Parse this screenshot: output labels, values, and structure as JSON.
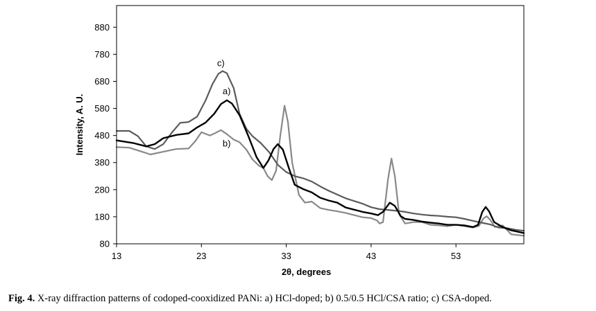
{
  "chart_data": {
    "type": "line",
    "xlabel": "2θ, degrees",
    "ylabel": "Intensity, A. U.",
    "xlim": [
      13,
      61
    ],
    "ylim": [
      80,
      960
    ],
    "xticks": [
      13,
      23,
      33,
      43,
      53
    ],
    "yticks": [
      80,
      180,
      280,
      380,
      480,
      580,
      680,
      780,
      880
    ],
    "grid": false,
    "series": [
      {
        "name": "a)",
        "color": "#000000",
        "label_at": [
          25.5,
          632
        ],
        "points": [
          [
            13,
            462
          ],
          [
            15,
            452
          ],
          [
            16.5,
            440
          ],
          [
            17.5,
            448
          ],
          [
            18.5,
            470
          ],
          [
            20,
            482
          ],
          [
            21.5,
            488
          ],
          [
            22.5,
            510
          ],
          [
            23.5,
            528
          ],
          [
            24.5,
            560
          ],
          [
            25.3,
            596
          ],
          [
            26,
            610
          ],
          [
            26.6,
            598
          ],
          [
            27.5,
            555
          ],
          [
            28.5,
            480
          ],
          [
            29.5,
            400
          ],
          [
            30.3,
            360
          ],
          [
            30.9,
            388
          ],
          [
            31.5,
            430
          ],
          [
            32,
            448
          ],
          [
            32.6,
            428
          ],
          [
            33.3,
            360
          ],
          [
            34,
            298
          ],
          [
            35,
            282
          ],
          [
            36,
            270
          ],
          [
            37,
            250
          ],
          [
            38,
            240
          ],
          [
            39,
            232
          ],
          [
            40,
            214
          ],
          [
            41,
            206
          ],
          [
            42,
            198
          ],
          [
            43,
            192
          ],
          [
            43.8,
            186
          ],
          [
            44.4,
            198
          ],
          [
            45.2,
            232
          ],
          [
            45.8,
            220
          ],
          [
            46.5,
            182
          ],
          [
            47,
            172
          ],
          [
            48,
            168
          ],
          [
            49,
            162
          ],
          [
            50,
            158
          ],
          [
            51,
            155
          ],
          [
            52,
            150
          ],
          [
            53,
            150
          ],
          [
            54,
            148
          ],
          [
            55,
            142
          ],
          [
            55.6,
            150
          ],
          [
            56.1,
            198
          ],
          [
            56.5,
            216
          ],
          [
            56.9,
            200
          ],
          [
            57.5,
            160
          ],
          [
            58.5,
            142
          ],
          [
            59.5,
            130
          ],
          [
            61,
            120
          ]
        ]
      },
      {
        "name": "b)",
        "color": "#888888",
        "label_at": [
          25.5,
          440
        ],
        "points": [
          [
            13,
            437
          ],
          [
            14.5,
            435
          ],
          [
            16,
            420
          ],
          [
            17,
            410
          ],
          [
            18.5,
            420
          ],
          [
            20,
            430
          ],
          [
            21.5,
            432
          ],
          [
            22.3,
            460
          ],
          [
            23,
            492
          ],
          [
            24,
            480
          ],
          [
            24.7,
            490
          ],
          [
            25.3,
            500
          ],
          [
            26,
            485
          ],
          [
            26.8,
            465
          ],
          [
            27.5,
            455
          ],
          [
            28.3,
            428
          ],
          [
            29,
            392
          ],
          [
            29.8,
            368
          ],
          [
            30.3,
            360
          ],
          [
            30.8,
            330
          ],
          [
            31.3,
            315
          ],
          [
            31.8,
            350
          ],
          [
            32.3,
            480
          ],
          [
            32.8,
            590
          ],
          [
            33.2,
            530
          ],
          [
            33.7,
            380
          ],
          [
            34.5,
            260
          ],
          [
            35.2,
            232
          ],
          [
            36,
            236
          ],
          [
            37,
            212
          ],
          [
            38,
            205
          ],
          [
            39,
            200
          ],
          [
            40,
            194
          ],
          [
            41,
            186
          ],
          [
            42,
            178
          ],
          [
            43,
            175
          ],
          [
            43.7,
            166
          ],
          [
            44,
            155
          ],
          [
            44.4,
            160
          ],
          [
            45,
            320
          ],
          [
            45.4,
            395
          ],
          [
            45.8,
            330
          ],
          [
            46.3,
            190
          ],
          [
            47,
            155
          ],
          [
            48,
            160
          ],
          [
            49,
            160
          ],
          [
            50,
            150
          ],
          [
            51,
            148
          ],
          [
            52,
            145
          ],
          [
            53,
            150
          ],
          [
            54,
            145
          ],
          [
            55,
            140
          ],
          [
            55.7,
            146
          ],
          [
            56.2,
            172
          ],
          [
            56.6,
            182
          ],
          [
            57,
            170
          ],
          [
            57.6,
            142
          ],
          [
            58.5,
            148
          ],
          [
            59.5,
            115
          ],
          [
            61,
            110
          ]
        ]
      },
      {
        "name": "c)",
        "color": "#5a5a5a",
        "label_at": [
          25.5,
          736
        ],
        "points": [
          [
            13,
            497
          ],
          [
            14.5,
            497
          ],
          [
            15.5,
            478
          ],
          [
            16.5,
            440
          ],
          [
            17.5,
            430
          ],
          [
            18.5,
            448
          ],
          [
            19.5,
            490
          ],
          [
            20.5,
            527
          ],
          [
            21.5,
            530
          ],
          [
            22.5,
            550
          ],
          [
            23.5,
            610
          ],
          [
            24.3,
            670
          ],
          [
            25,
            708
          ],
          [
            25.5,
            718
          ],
          [
            26,
            710
          ],
          [
            26.8,
            655
          ],
          [
            27.5,
            560
          ],
          [
            28.3,
            505
          ],
          [
            29,
            478
          ],
          [
            30,
            452
          ],
          [
            31,
            418
          ],
          [
            32,
            372
          ],
          [
            33,
            345
          ],
          [
            34,
            330
          ],
          [
            35,
            322
          ],
          [
            36,
            310
          ],
          [
            37,
            292
          ],
          [
            38,
            276
          ],
          [
            39,
            262
          ],
          [
            40,
            248
          ],
          [
            41,
            238
          ],
          [
            42,
            228
          ],
          [
            43,
            215
          ],
          [
            44,
            208
          ],
          [
            45,
            205
          ],
          [
            46,
            202
          ],
          [
            47,
            198
          ],
          [
            48,
            192
          ],
          [
            49,
            188
          ],
          [
            50,
            185
          ],
          [
            51,
            183
          ],
          [
            52,
            180
          ],
          [
            53,
            178
          ],
          [
            54,
            172
          ],
          [
            55,
            165
          ],
          [
            56,
            158
          ],
          [
            57,
            152
          ],
          [
            58,
            140
          ],
          [
            59,
            138
          ],
          [
            60,
            132
          ],
          [
            61,
            128
          ]
        ]
      }
    ]
  },
  "caption": {
    "label": "Fig. 4.",
    "text": " X-ray diffraction patterns of codoped-cooxidized PANi: a) HCl-doped; b) 0.5/0.5 HCl/CSA ratio; c) CSA-doped."
  }
}
